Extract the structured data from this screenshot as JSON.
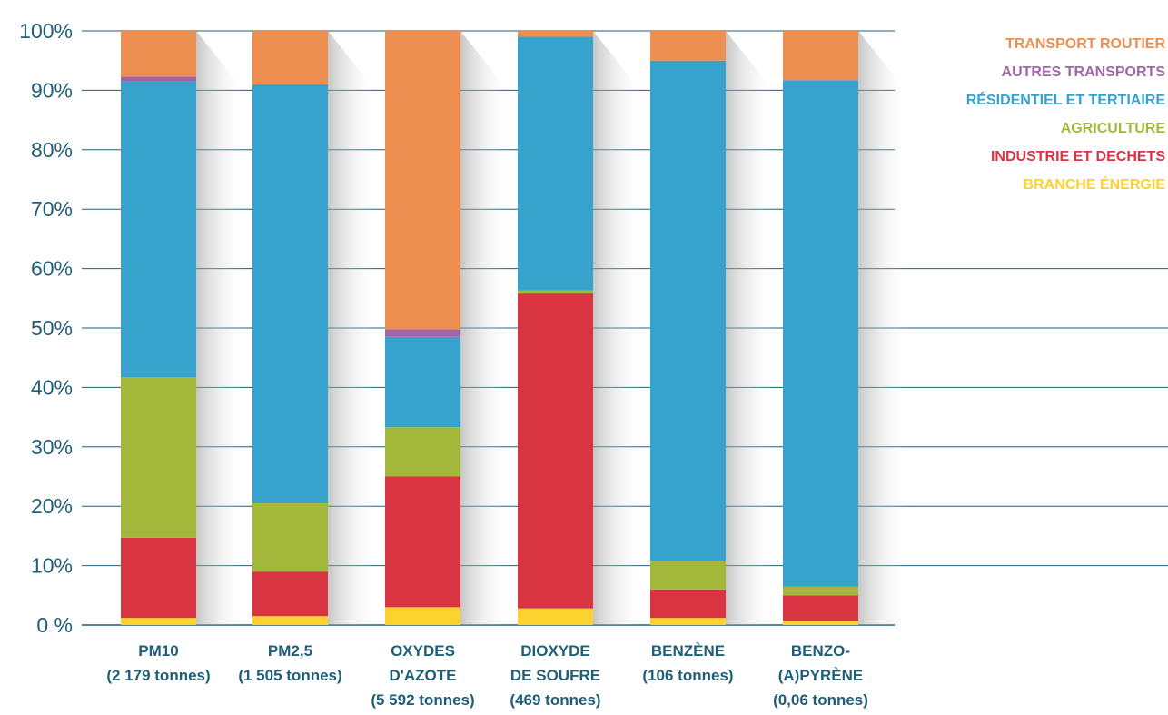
{
  "chart_data": {
    "type": "bar",
    "stacked": true,
    "ylim": [
      0,
      100
    ],
    "yticks": [
      "0 %",
      "10%",
      "20%",
      "30%",
      "40%",
      "50%",
      "60%",
      "70%",
      "80%",
      "90%",
      "100%"
    ],
    "categories": [
      [
        "PM10",
        "(2 179 tonnes)"
      ],
      [
        "PM2,5",
        "(1 505 tonnes)"
      ],
      [
        "OXYDES",
        "D'AZOTE",
        "(5 592 tonnes)"
      ],
      [
        "DIOXYDE",
        "DE SOUFRE",
        "(469 tonnes)"
      ],
      [
        "BENZÈNE",
        "(106 tonnes)"
      ],
      [
        "BENZO-",
        "(A)PYRÈNE",
        "(0,06 tonnes)"
      ]
    ],
    "series": [
      {
        "name": "BRANCHE ÉNERGIE",
        "color": "#fcd22e",
        "values": [
          1.2,
          1.5,
          3.0,
          2.8,
          1.2,
          0.7
        ]
      },
      {
        "name": "INDUSTRIE ET DECHETS",
        "color": "#d93442",
        "values": [
          13.5,
          7.5,
          22.0,
          53.0,
          4.8,
          4.3
        ]
      },
      {
        "name": "AGRICULTURE",
        "color": "#a3b83b",
        "values": [
          27.0,
          11.5,
          8.3,
          0.5,
          4.7,
          1.5
        ]
      },
      {
        "name": "RÉSIDENTIEL ET TERTIAIRE",
        "color": "#36a3cc",
        "values": [
          49.8,
          70.5,
          15.2,
          42.7,
          84.3,
          85.2
        ]
      },
      {
        "name": "AUTRES TRANSPORTS",
        "color": "#a066a8",
        "values": [
          0.8,
          0.0,
          1.3,
          0.0,
          0.0,
          0.0
        ]
      },
      {
        "name": "TRANSPORT ROUTIER",
        "color": "#ec8f50",
        "values": [
          7.7,
          9.0,
          50.2,
          1.0,
          5.0,
          8.3
        ]
      }
    ],
    "legend_position": "top-right",
    "legend_order": [
      "TRANSPORT ROUTIER",
      "AUTRES TRANSPORTS",
      "RÉSIDENTIEL ET TERTIAIRE",
      "AGRICULTURE",
      "INDUSTRIE ET DECHETS",
      "BRANCHE ÉNERGIE"
    ],
    "grid": true,
    "axis_color": "#1f5e78"
  }
}
